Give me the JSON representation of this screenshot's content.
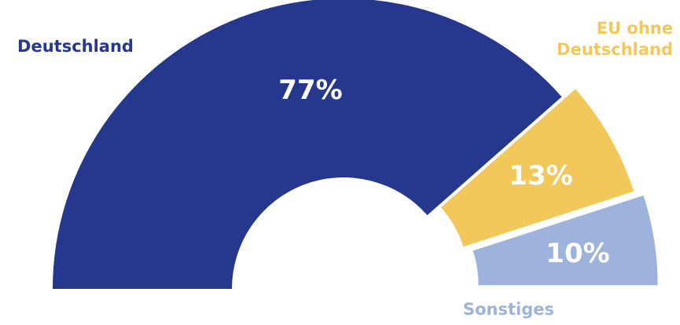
{
  "chart_data": {
    "type": "pie",
    "variant": "semicircle-donut",
    "title": "",
    "categories": [
      "Deutschland",
      "EU ohne Deutschland",
      "Sonstiges"
    ],
    "category_label_lines": [
      [
        "Deutschland"
      ],
      [
        "EU ohne",
        "Deutschland"
      ],
      [
        "Sonstiges"
      ]
    ],
    "values": [
      77,
      13,
      10
    ],
    "value_labels": [
      "77%",
      "13%",
      "10%"
    ],
    "unit": "%",
    "colors": [
      "#26388e",
      "#f2c85a",
      "#9eb3dc"
    ],
    "legend": "none"
  }
}
